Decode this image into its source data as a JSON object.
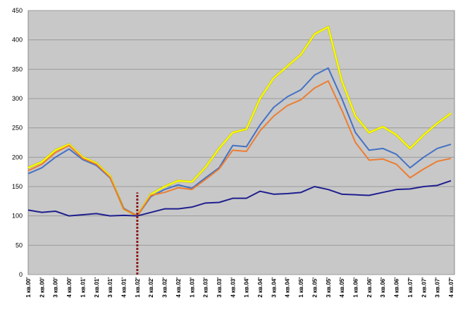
{
  "chart_data": {
    "type": "line",
    "categories": [
      "1 кв.00'",
      "2 кв.00'",
      "3 кв.00'",
      "4 кв.00'",
      "1 кв.01'",
      "2 кв.01'",
      "3 кв.01'",
      "4 кв.01'",
      "1 кв.02'",
      "2 кв.02'",
      "3 кв.02'",
      "4 кв.02'",
      "1 кв.03'",
      "2 кв.03'",
      "3 кв.03'",
      "4 кв.03'",
      "1 кв.04'",
      "2 кв.04'",
      "3 кв.04'",
      "4 кв.04'",
      "1 кв.05'",
      "2 кв.05'",
      "3 кв.05'",
      "4 кв.05'",
      "1 кв.06'",
      "2 кв.06'",
      "3 кв.06'",
      "4 кв.06'",
      "1 кв.07'",
      "2 кв.07'",
      "3 кв.07'",
      "4 кв.07'"
    ],
    "series": [
      {
        "color": "#ffff00",
        "values": [
          182,
          192,
          212,
          222,
          200,
          190,
          168,
          112,
          100,
          137,
          150,
          160,
          158,
          183,
          215,
          242,
          248,
          300,
          335,
          355,
          375,
          410,
          422,
          330,
          270,
          242,
          252,
          238,
          215,
          238,
          258,
          275
        ]
      },
      {
        "color": "#4472c4",
        "values": [
          172,
          182,
          200,
          214,
          196,
          186,
          165,
          113,
          100,
          133,
          145,
          153,
          147,
          165,
          182,
          220,
          218,
          255,
          285,
          303,
          315,
          340,
          352,
          300,
          242,
          212,
          215,
          205,
          182,
          200,
          215,
          222
        ]
      },
      {
        "color": "#ed7d31",
        "values": [
          177,
          188,
          208,
          220,
          198,
          188,
          166,
          112,
          100,
          135,
          140,
          148,
          145,
          162,
          180,
          212,
          210,
          245,
          270,
          288,
          298,
          318,
          330,
          280,
          225,
          195,
          197,
          188,
          165,
          180,
          193,
          198
        ]
      },
      {
        "color": "#1f1f8f",
        "values": [
          110,
          106,
          108,
          100,
          102,
          104,
          100,
          101,
          100,
          106,
          112,
          112,
          115,
          122,
          123,
          130,
          130,
          142,
          137,
          138,
          140,
          150,
          145,
          137,
          136,
          135,
          140,
          145,
          146,
          150,
          152,
          160
        ]
      }
    ],
    "reference_line": {
      "category": 8,
      "top": 140,
      "color": "#8b1a1a"
    },
    "ylim": [
      0,
      450
    ],
    "yticks": [
      0,
      50,
      100,
      150,
      200,
      250,
      300,
      350,
      400,
      450
    ],
    "grid": true
  }
}
